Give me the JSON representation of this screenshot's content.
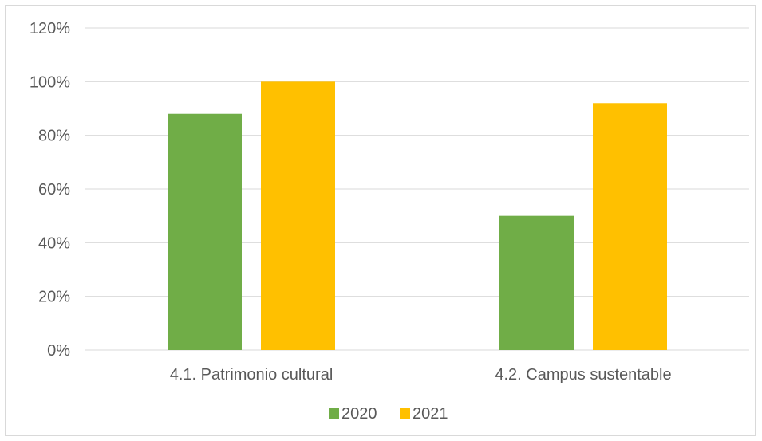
{
  "chart_data": {
    "type": "bar",
    "categories": [
      "4.1. Patrimonio cultural",
      "4.2. Campus sustentable"
    ],
    "series": [
      {
        "name": "2020",
        "color": "#70ad47",
        "values": [
          0.88,
          0.5
        ]
      },
      {
        "name": "2021",
        "color": "#ffc000",
        "values": [
          1.0,
          0.92
        ]
      }
    ],
    "ylim": [
      0,
      1.2
    ],
    "yticks": [
      "0%",
      "20%",
      "40%",
      "60%",
      "80%",
      "100%",
      "120%"
    ],
    "ytick_values": [
      0,
      0.2,
      0.4,
      0.6,
      0.8,
      1.0,
      1.2
    ],
    "grid": true,
    "legend_position": "bottom"
  }
}
